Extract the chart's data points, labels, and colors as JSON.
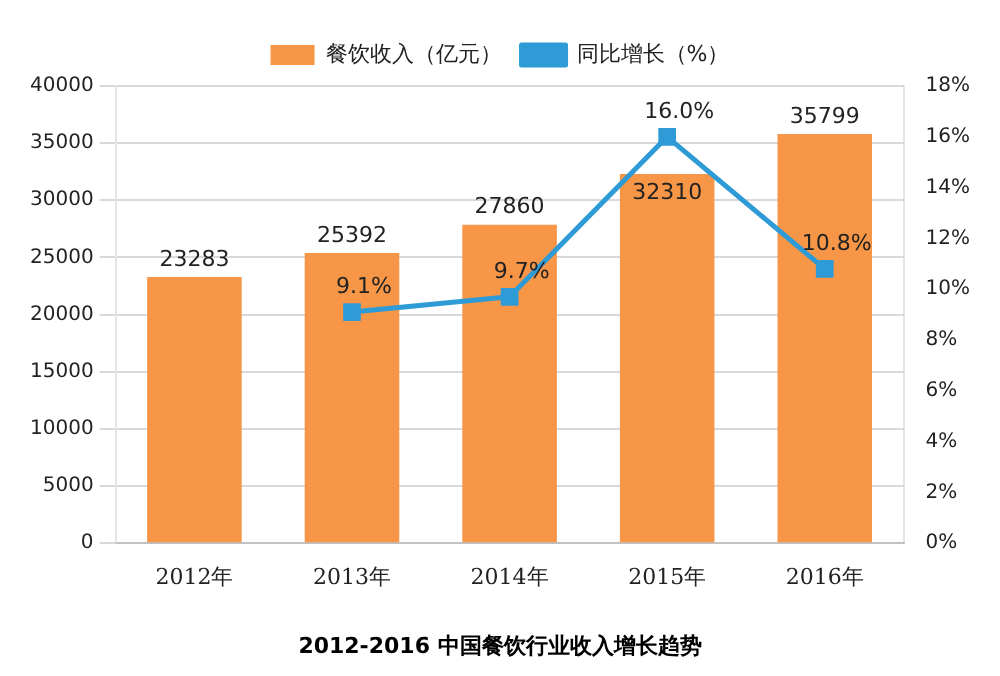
{
  "chart_data": {
    "type": "bar",
    "title": "2012-2016 中国餐饮行业收入增长趋势",
    "categories": [
      "2012年",
      "2013年",
      "2014年",
      "2015年",
      "2016年"
    ],
    "series": [
      {
        "name": "餐饮收入（亿元）",
        "color": "#f79646",
        "values": [
          23283,
          25392,
          27860,
          32310,
          35799
        ],
        "value_labels": [
          "23283",
          "25392",
          "27860",
          "32310",
          "35799"
        ]
      },
      {
        "name": "同比增长（%）",
        "type": "line",
        "axis": "y2",
        "color": "#2e9bd6",
        "marker": "square",
        "values": [
          null,
          9.1,
          9.7,
          16.0,
          10.8
        ],
        "value_labels": [
          null,
          "9.1%",
          "9.7%",
          "16.0%",
          "10.8%"
        ]
      }
    ],
    "ylim": [
      0,
      40000
    ],
    "yticks": [
      0,
      5000,
      10000,
      15000,
      20000,
      25000,
      30000,
      35000,
      40000
    ],
    "y2lim": [
      0,
      18
    ],
    "y2ticks": [
      {
        "value": 0,
        "label": "0%"
      },
      {
        "value": 2,
        "label": "2%"
      },
      {
        "value": 4,
        "label": "4%"
      },
      {
        "value": 6,
        "label": "6%"
      },
      {
        "value": 8,
        "label": "8%"
      },
      {
        "value": 10,
        "label": "10%"
      },
      {
        "value": 12,
        "label": "12%"
      },
      {
        "value": 14,
        "label": "14%"
      },
      {
        "value": 16,
        "label": "16%"
      },
      {
        "value": 18,
        "label": "18%"
      }
    ],
    "grid": "y",
    "legend": "top"
  }
}
